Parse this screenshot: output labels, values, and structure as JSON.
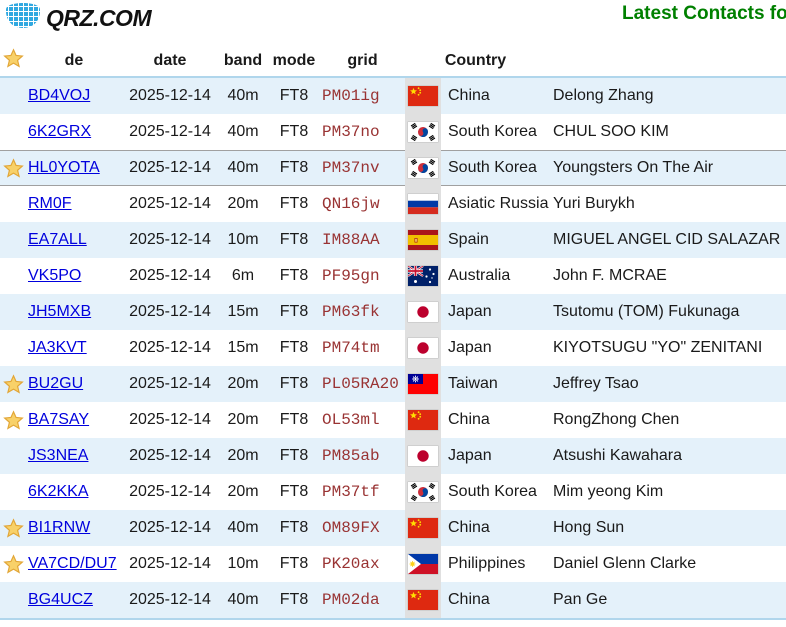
{
  "header": {
    "logo_text": "QRZ.COM",
    "title": "Latest Contacts fo"
  },
  "icons": {
    "logo": "globe-icon",
    "favorite": "star-icon"
  },
  "colors": {
    "accent_line": "#b0d6ec",
    "row_alt": "#e4f1fa",
    "link_blue": "#0000dd",
    "grid_red": "#993333",
    "title_green": "#008000",
    "flag_strip_gray": "#e0e0e0",
    "highlight_border": "#a0a0a0",
    "star_gold": "#f8d169"
  },
  "table": {
    "columns": {
      "star": "",
      "de": "de",
      "date": "date",
      "band": "band",
      "mode": "mode",
      "grid": "grid",
      "country": "Country"
    },
    "rows": [
      {
        "starred": false,
        "de": "BD4VOJ",
        "date": "2025-12-14",
        "band": "40m",
        "mode": "FT8",
        "grid": "PM01ig",
        "flag": "cn",
        "country": "China",
        "name": "Delong Zhang",
        "highlighted": false
      },
      {
        "starred": false,
        "de": "6K2GRX",
        "date": "2025-12-14",
        "band": "40m",
        "mode": "FT8",
        "grid": "PM37no",
        "flag": "kr",
        "country": "South Korea",
        "name": "CHUL SOO KIM",
        "highlighted": false
      },
      {
        "starred": true,
        "de": "HL0YOTA",
        "date": "2025-12-14",
        "band": "40m",
        "mode": "FT8",
        "grid": "PM37nv",
        "flag": "kr",
        "country": "South Korea",
        "name": "Youngsters On The Air",
        "highlighted": true
      },
      {
        "starred": false,
        "de": "RM0F",
        "date": "2025-12-14",
        "band": "20m",
        "mode": "FT8",
        "grid": "QN16jw",
        "flag": "ru",
        "country": "Asiatic Russia",
        "name": "Yuri Burykh",
        "highlighted": false
      },
      {
        "starred": false,
        "de": "EA7ALL",
        "date": "2025-12-14",
        "band": "10m",
        "mode": "FT8",
        "grid": "IM88AA",
        "flag": "es",
        "country": "Spain",
        "name": "MIGUEL ANGEL CID SALAZAR",
        "highlighted": false
      },
      {
        "starred": false,
        "de": "VK5PO",
        "date": "2025-12-14",
        "band": "6m",
        "mode": "FT8",
        "grid": "PF95gn",
        "flag": "au",
        "country": "Australia",
        "name": "John F. MCRAE",
        "highlighted": false
      },
      {
        "starred": false,
        "de": "JH5MXB",
        "date": "2025-12-14",
        "band": "15m",
        "mode": "FT8",
        "grid": "PM63fk",
        "flag": "jp",
        "country": "Japan",
        "name": "Tsutomu (TOM) Fukunaga",
        "highlighted": false
      },
      {
        "starred": false,
        "de": "JA3KVT",
        "date": "2025-12-14",
        "band": "15m",
        "mode": "FT8",
        "grid": "PM74tm",
        "flag": "jp",
        "country": "Japan",
        "name": "KIYOTSUGU \"YO\" ZENITANI",
        "highlighted": false
      },
      {
        "starred": true,
        "de": "BU2GU",
        "date": "2025-12-14",
        "band": "20m",
        "mode": "FT8",
        "grid": "PL05RA20",
        "flag": "tw",
        "country": "Taiwan",
        "name": "Jeffrey Tsao",
        "highlighted": false
      },
      {
        "starred": true,
        "de": "BA7SAY",
        "date": "2025-12-14",
        "band": "20m",
        "mode": "FT8",
        "grid": "OL53ml",
        "flag": "cn",
        "country": "China",
        "name": "RongZhong Chen",
        "highlighted": false
      },
      {
        "starred": false,
        "de": "JS3NEA",
        "date": "2025-12-14",
        "band": "20m",
        "mode": "FT8",
        "grid": "PM85ab",
        "flag": "jp",
        "country": "Japan",
        "name": "Atsushi Kawahara",
        "highlighted": false
      },
      {
        "starred": false,
        "de": "6K2KKA",
        "date": "2025-12-14",
        "band": "20m",
        "mode": "FT8",
        "grid": "PM37tf",
        "flag": "kr",
        "country": "South Korea",
        "name": "Mim yeong Kim",
        "highlighted": false
      },
      {
        "starred": true,
        "de": "BI1RNW",
        "date": "2025-12-14",
        "band": "40m",
        "mode": "FT8",
        "grid": "OM89FX",
        "flag": "cn",
        "country": "China",
        "name": "Hong Sun",
        "highlighted": false
      },
      {
        "starred": true,
        "de": "VA7CD/DU7",
        "date": "2025-12-14",
        "band": "10m",
        "mode": "FT8",
        "grid": "PK20ax",
        "flag": "ph",
        "country": "Philippines",
        "name": "Daniel Glenn Clarke",
        "highlighted": false
      },
      {
        "starred": false,
        "de": "BG4UCZ",
        "date": "2025-12-14",
        "band": "40m",
        "mode": "FT8",
        "grid": "PM02da",
        "flag": "cn",
        "country": "China",
        "name": "Pan Ge",
        "highlighted": false
      }
    ]
  }
}
